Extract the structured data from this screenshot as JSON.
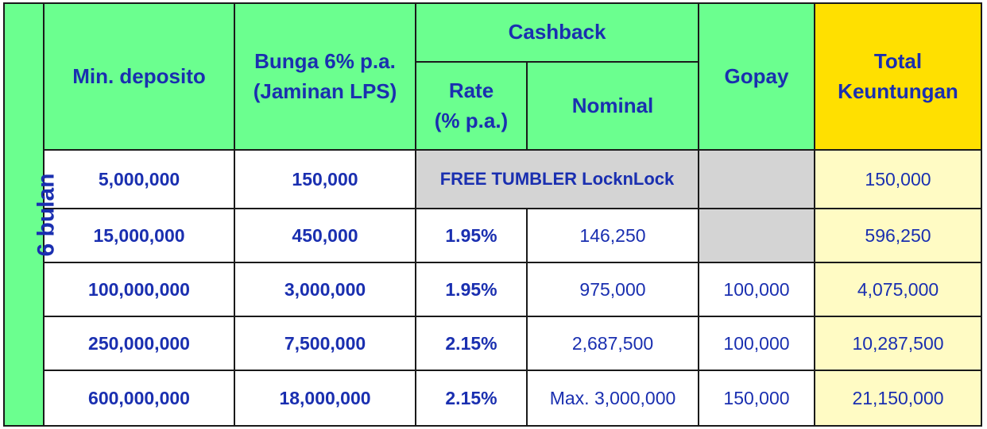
{
  "side_label": "6 bulan",
  "headers": {
    "min_deposito": "Min. deposito",
    "bunga_line1": "Bunga 6% p.a.",
    "bunga_line2": "(Jaminan LPS)",
    "cashback": "Cashback",
    "rate_line1": "Rate",
    "rate_line2": "(% p.a.)",
    "nominal": "Nominal",
    "gopay": "Gopay",
    "total_line1": "Total",
    "total_line2": "Keuntungan"
  },
  "promo_text": "FREE TUMBLER LocknLock",
  "rows": [
    {
      "min_deposito": "5,000,000",
      "bunga": "150,000",
      "rate": "",
      "nominal": "",
      "gopay": "",
      "total": "150,000"
    },
    {
      "min_deposito": "15,000,000",
      "bunga": "450,000",
      "rate": "1.95%",
      "nominal": "146,250",
      "gopay": "",
      "total": "596,250"
    },
    {
      "min_deposito": "100,000,000",
      "bunga": "3,000,000",
      "rate": "1.95%",
      "nominal": "975,000",
      "gopay": "100,000",
      "total": "4,075,000"
    },
    {
      "min_deposito": "250,000,000",
      "bunga": "7,500,000",
      "rate": "2.15%",
      "nominal": "2,687,500",
      "gopay": "100,000",
      "total": "10,287,500"
    },
    {
      "min_deposito": "600,000,000",
      "bunga": "18,000,000",
      "rate": "2.15%",
      "nominal": "Max. 3,000,000",
      "gopay": "150,000",
      "total": "21,150,000"
    }
  ],
  "colors": {
    "header_green": "#6bff8f",
    "total_yellow": "#ffe000",
    "total_cell": "#fffbc4",
    "empty_grey": "#d4d4d4",
    "text_blue": "#1a2fb0"
  }
}
